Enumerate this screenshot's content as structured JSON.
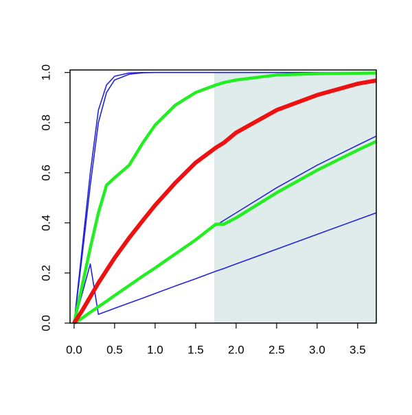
{
  "chart_data": {
    "type": "line",
    "x": [
      0,
      0.1,
      0.2,
      0.3,
      0.4,
      0.5,
      0.68,
      0.85,
      1.0,
      1.25,
      1.5,
      1.75,
      1.85,
      2.0,
      2.5,
      3.0,
      3.5,
      3.73
    ],
    "series": [
      {
        "color": "#2222dd",
        "width": 1.6,
        "values": [
          0,
          0.118,
          0.236,
          0.035,
          0.047,
          0.059,
          0.08,
          0.1,
          0.118,
          0.148,
          0.177,
          0.207,
          0.218,
          0.236,
          0.295,
          0.354,
          0.413,
          0.44
        ]
      },
      {
        "color": "#2222dd",
        "width": 1.6,
        "values": [
          0,
          0.022,
          0.045,
          0.067,
          0.089,
          0.112,
          0.152,
          0.19,
          0.223,
          0.279,
          0.335,
          0.39,
          0.41,
          0.44,
          0.54,
          0.63,
          0.71,
          0.746
        ]
      },
      {
        "color": "#2222dd",
        "width": 1.6,
        "values": [
          0,
          0.3,
          0.6,
          0.85,
          0.95,
          0.985,
          0.998,
          1,
          1,
          1,
          1,
          1,
          1,
          1,
          1,
          1,
          1,
          1
        ]
      },
      {
        "color": "#2222dd",
        "width": 1.6,
        "values": [
          0,
          0.27,
          0.55,
          0.8,
          0.92,
          0.97,
          0.993,
          0.999,
          1,
          1,
          1,
          1,
          1,
          1,
          1,
          1,
          1,
          1
        ]
      },
      {
        "color": "#22ee22",
        "width": 4.5,
        "values": [
          0,
          0.02,
          0.043,
          0.065,
          0.087,
          0.11,
          0.15,
          0.188,
          0.22,
          0.276,
          0.332,
          0.395,
          0.395,
          0.42,
          0.52,
          0.61,
          0.69,
          0.725
        ]
      },
      {
        "color": "#22ee22",
        "width": 4.5,
        "values": [
          0,
          0.15,
          0.3,
          0.44,
          0.55,
          0.58,
          0.63,
          0.72,
          0.79,
          0.87,
          0.92,
          0.95,
          0.96,
          0.97,
          0.99,
          0.995,
          0.997,
          0.998
        ]
      },
      {
        "color": "#ee1111",
        "width": 6,
        "values": [
          0,
          0.05,
          0.105,
          0.16,
          0.21,
          0.26,
          0.34,
          0.41,
          0.47,
          0.56,
          0.64,
          0.7,
          0.72,
          0.76,
          0.85,
          0.91,
          0.955,
          0.968
        ]
      }
    ],
    "shaded_region": {
      "xmin": 1.73,
      "xmax": 3.73,
      "color": "#e0ecec"
    },
    "xlim": [
      -0.05,
      3.73
    ],
    "ylim": [
      0,
      1.01
    ],
    "xticks": [
      {
        "value": 0,
        "label": "0.0"
      },
      {
        "value": 0.5,
        "label": "0.5"
      },
      {
        "value": 1,
        "label": "1.0"
      },
      {
        "value": 1.5,
        "label": "1.5"
      },
      {
        "value": 2,
        "label": "2.0"
      },
      {
        "value": 2.5,
        "label": "2.5"
      },
      {
        "value": 3,
        "label": "3.0"
      },
      {
        "value": 3.5,
        "label": "3.5"
      }
    ],
    "yticks": [
      {
        "value": 0,
        "label": "0.0"
      },
      {
        "value": 0.2,
        "label": "0.2"
      },
      {
        "value": 0.4,
        "label": "0.4"
      },
      {
        "value": 0.6,
        "label": "0.6"
      },
      {
        "value": 0.8,
        "label": "0.8"
      },
      {
        "value": 1,
        "label": "1.0"
      }
    ]
  }
}
